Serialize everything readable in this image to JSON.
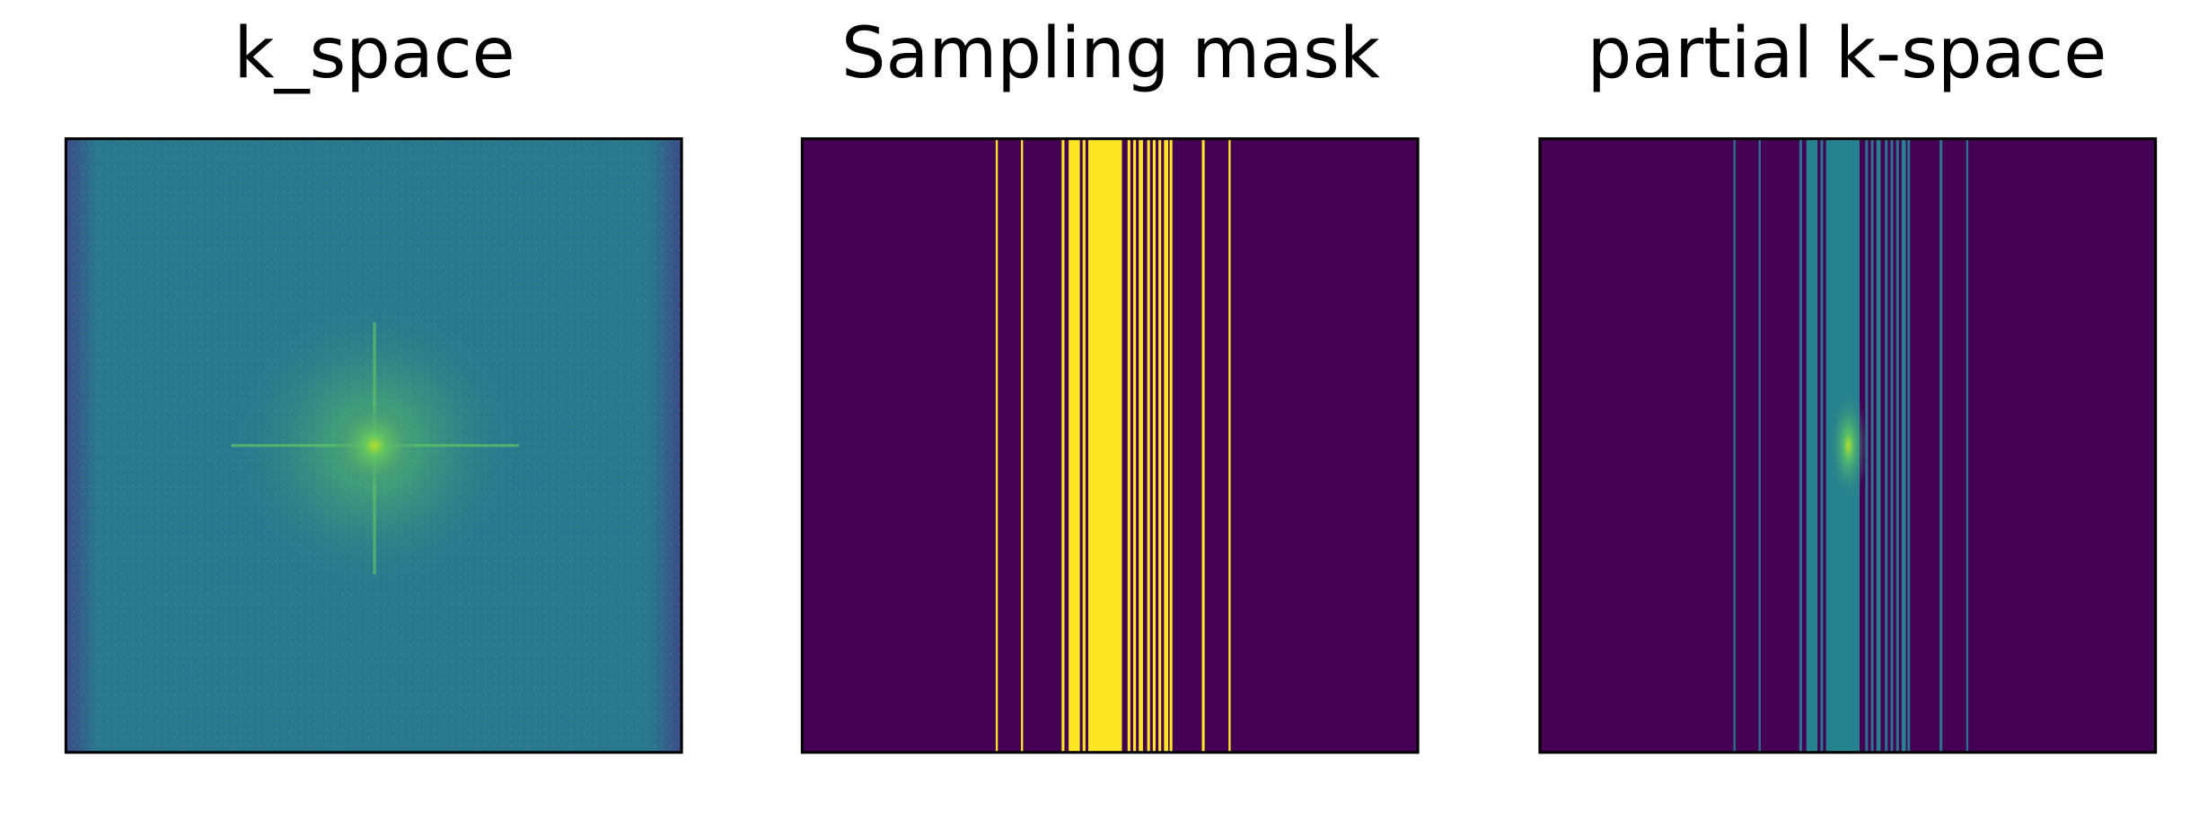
{
  "panels": [
    {
      "title": "k_space"
    },
    {
      "title": "Sampling mask"
    },
    {
      "title": "partial k-space"
    }
  ]
}
